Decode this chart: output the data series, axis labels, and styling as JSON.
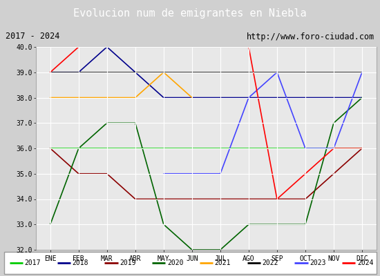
{
  "title": "Evolucion num de emigrantes en Niebla",
  "subtitle_left": "2017 - 2024",
  "subtitle_right": "http://www.foro-ciudad.com",
  "months": [
    "ENE",
    "FEB",
    "MAR",
    "ABR",
    "MAY",
    "JUN",
    "JUL",
    "AGO",
    "SEP",
    "OCT",
    "NOV",
    "DIC"
  ],
  "ylim": [
    32.0,
    40.0
  ],
  "yticks": [
    32.0,
    33.0,
    34.0,
    35.0,
    36.0,
    37.0,
    38.0,
    39.0,
    40.0
  ],
  "series": {
    "2017": {
      "color": "#00cc00",
      "data": [
        36,
        36,
        36,
        36,
        36,
        36,
        36,
        36,
        36,
        36,
        36,
        36
      ]
    },
    "2018": {
      "color": "#00008b",
      "data": [
        39,
        39,
        40,
        39,
        38,
        38,
        38,
        38,
        38,
        38,
        38,
        38
      ]
    },
    "2019": {
      "color": "#8b0000",
      "data": [
        36,
        35,
        35,
        34,
        34,
        34,
        34,
        34,
        34,
        34,
        35,
        36
      ]
    },
    "2020": {
      "color": "#006400",
      "data": [
        33,
        36,
        37,
        37,
        33,
        32,
        32,
        33,
        33,
        33,
        37,
        38
      ]
    },
    "2021": {
      "color": "#ffa500",
      "data": [
        38,
        38,
        38,
        38,
        39,
        38,
        null,
        null,
        null,
        null,
        null,
        null
      ]
    },
    "2022": {
      "color": "#000000",
      "data": [
        39,
        39,
        39,
        39,
        39,
        39,
        39,
        39,
        39,
        39,
        39,
        39
      ]
    },
    "2023": {
      "color": "#4444ff",
      "data": [
        null,
        null,
        null,
        null,
        35,
        35,
        35,
        38,
        39,
        36,
        36,
        39
      ]
    },
    "2024": {
      "color": "#ff0000",
      "data": [
        39,
        40,
        40,
        40,
        40,
        40,
        40,
        40,
        34,
        35,
        36,
        36
      ]
    }
  },
  "legend_order": [
    "2017",
    "2018",
    "2019",
    "2020",
    "2021",
    "2022",
    "2023",
    "2024"
  ],
  "title_bg": "#5b9bd5",
  "title_color": "#ffffff",
  "plot_bg": "#e8e8e8",
  "grid_color": "#ffffff",
  "fig_bg": "#d0d0d0"
}
